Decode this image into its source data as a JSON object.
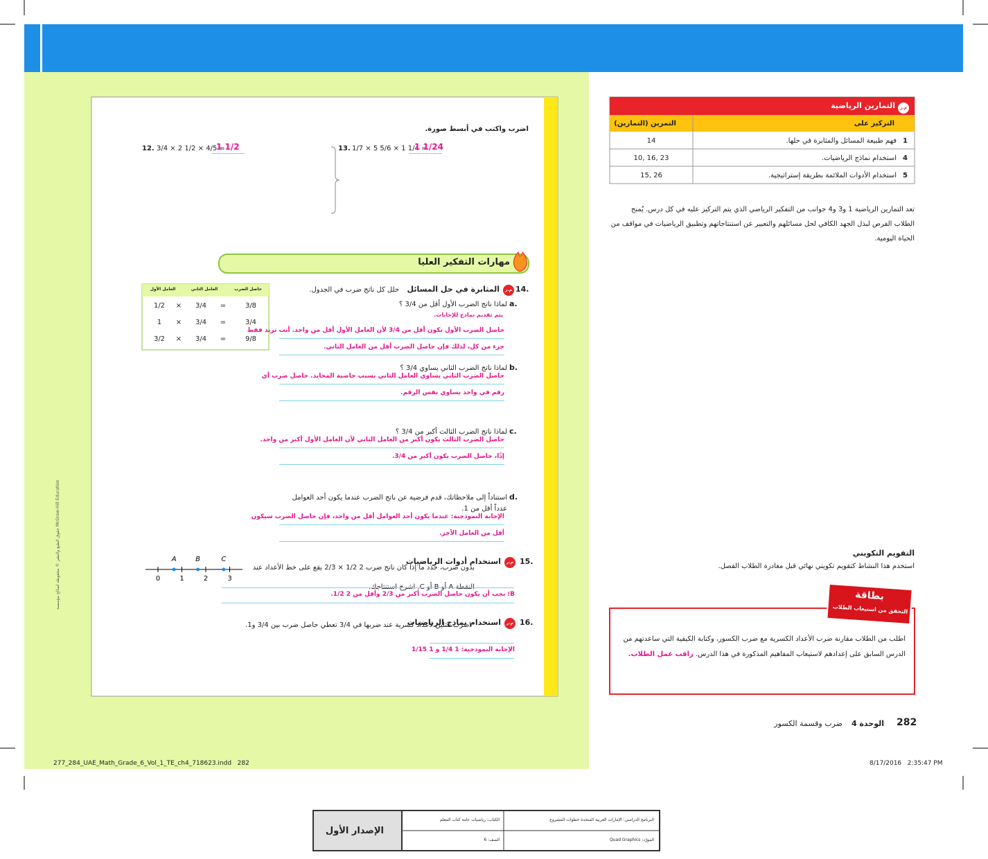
{
  "student_page": {
    "instruction": "اضرب واكتب في أبسط صورة.",
    "exercises": [
      {
        "number": "12.",
        "expression": "3/4 × 2 1/2 × 4/5 =",
        "answer": "1 1/2"
      },
      {
        "number": "13.",
        "expression": "1/7 × 5 5/6 × 1 1/4 =",
        "answer": "1 1/24"
      }
    ],
    "section_title": "مهارات التفكير العليا",
    "q14": {
      "number": "14.",
      "badge": "م.ر",
      "label": "المثابرة في حل المسائل",
      "prompt": "حلل كل ناتج ضرب في الجدول.",
      "table": {
        "headers": [
          "العامل الأول",
          "العامل الثاني",
          "حاصل الضرب"
        ],
        "rows": [
          [
            "1/2",
            "×",
            "3/4",
            "=",
            "3/8"
          ],
          [
            "1",
            "×",
            "3/4",
            "=",
            "3/4"
          ],
          [
            "3/2",
            "×",
            "3/4",
            "=",
            "9/8"
          ]
        ]
      },
      "note": "يتم تقديم نماذج للإجابات.",
      "parts": [
        {
          "letter": "a.",
          "question": "لماذا ناتج الضرب الأول أقل من 3/4 ؟",
          "answers": [
            "حاصل الضرب الأول يكون أقل من 3/4 لأن العامل الأول أقل من واحد. أنت تريد فقط",
            "جزء من كل، لذلك فإن حاصل الضرب أقل من العامل الثاني."
          ]
        },
        {
          "letter": "b.",
          "question": "لماذا ناتج الضرب الثاني يساوي 3/4 ؟",
          "answers": [
            "حاصل الضرب الثاني يساوي العامل الثاني بسبب خاصية المحايد. حاصل ضرب أي",
            "رقم في واحد يساوي نفس الرقم."
          ]
        },
        {
          "letter": "c.",
          "question": "لماذا ناتج الضرب الثالث أكبر من 3/4 ؟",
          "answers": [
            "حاصل الضرب الثالث يكون أكبر من العامل الثاني لأن العامل الأول أكبر من واحد.",
            "إذًا، حاصل الضرب يكون أكبر من 3/4."
          ]
        },
        {
          "letter": "d.",
          "question": "استناداً إلى ملاحظاتك، قدم فرضية عن ناتج الضرب عندما يكون أحد العوامل عدداً أقل من 1.",
          "answers": [
            "الإجابة النموذجية: عندما يكون أحد العوامل أقل من واحد، فإن حاصل الضرب سيكون",
            "أقل من العامل الآخر."
          ]
        }
      ]
    },
    "q15": {
      "number": "15.",
      "badge": "م.ر",
      "label": "استخدام أدوات الرياضيات",
      "prompt": "بدون ضرب، حدد ما إذا كان ناتج ضرب 2 1/2 × 2/3 يقع على خط الأعداد عند النقطة A أو B أو C. اشرح استنتاجك.",
      "answer": "B؛ يجب أن يكون حاصل الضرب أكبر من 2/3 وأقل من 2 1/2.",
      "number_line": {
        "ticks": [
          0,
          1,
          2,
          3
        ],
        "points": [
          {
            "label": "A",
            "value": 0.67
          },
          {
            "label": "B",
            "value": 1.67
          },
          {
            "label": "C",
            "value": 2.75
          }
        ]
      }
    },
    "q16": {
      "number": "16.",
      "badge": "م.ر",
      "label": "استخدام نماذج الرياضيات",
      "prompt": "اضرب مثلين لأعداد كسرية عند ضربها في 3/4 تعطي حاصل ضرب بين 3/4 و1.",
      "answer": "الإجابة النموذجية: 1 1/4 و 1 1/15"
    },
    "copyright": "حقوق الطبع والنشر © محفوظة لصالح مؤسسة McGraw-Hill Education"
  },
  "teacher_notes": {
    "practices_table": {
      "badge": "م.ر",
      "title": "التمارين الرياضية",
      "headers": [
        "التركيز على",
        "التمرين (التمارين)"
      ],
      "rows": [
        [
          "1",
          "فهم طبيعة المسائل والمثابرة في حلها.",
          "14"
        ],
        [
          "4",
          "استخدام نماذج الرياضيات.",
          "10, 16, 23"
        ],
        [
          "5",
          "استخدام الأدوات الملائمة بطريقة إستراتيجية.",
          "15, 26"
        ]
      ]
    },
    "practices_paragraph": "تعد التمارين الرياضية 1 و3 و4 جوانب من التفكير الرياضي الذي يتم التركيز عليه في كل درس. يُمنح الطلاب الفرص لبذل الجهد الكافي لحل مسائلهم والتعبير عن استنتاجاتهم وتطبيق الرياضيات في مواقف من الحياة اليومية.",
    "formative_title": "التقويم التكويني",
    "formative_text": "استخدم هذا النشاط كتقويم تكويني نهائي قبل مغادرة الطلاب الفصل.",
    "ticket_title": "بطاقة",
    "ticket_subtitle": "التحقق من استيعاب الطلاب",
    "ticket_text": "اطلب من الطلاب مقارنة ضرب الأعداد الكسرية مع ضرب الكسور، وكتابة الكيفية التي ساعدتهم من الدرس السابق على إعدادهم لاستيعاب المفاهيم المذكورة في هذا الدرس.",
    "ticket_action": "راقب عمل الطلاب."
  },
  "footer": {
    "page": "282",
    "unit": "الوحدة 4",
    "unit_title": "ضرب وقسمة الكسور"
  },
  "slug": {
    "file": "277_284_UAE_Math_Grade_6_Vol_1_TE_ch4_718623.indd   282",
    "date": "8/17/2016   2:35:47 PM"
  },
  "proof_box": {
    "program": "البرنامج الدراسي: الإمارات العربية المتحدة خطوات المشروع",
    "book": "الكتاب: رياضيات عامة كتاب المعلم",
    "edition": "الإصدار الأول",
    "supplier": "المورّد: Quad Graphics",
    "grade": "الصف: 6"
  }
}
